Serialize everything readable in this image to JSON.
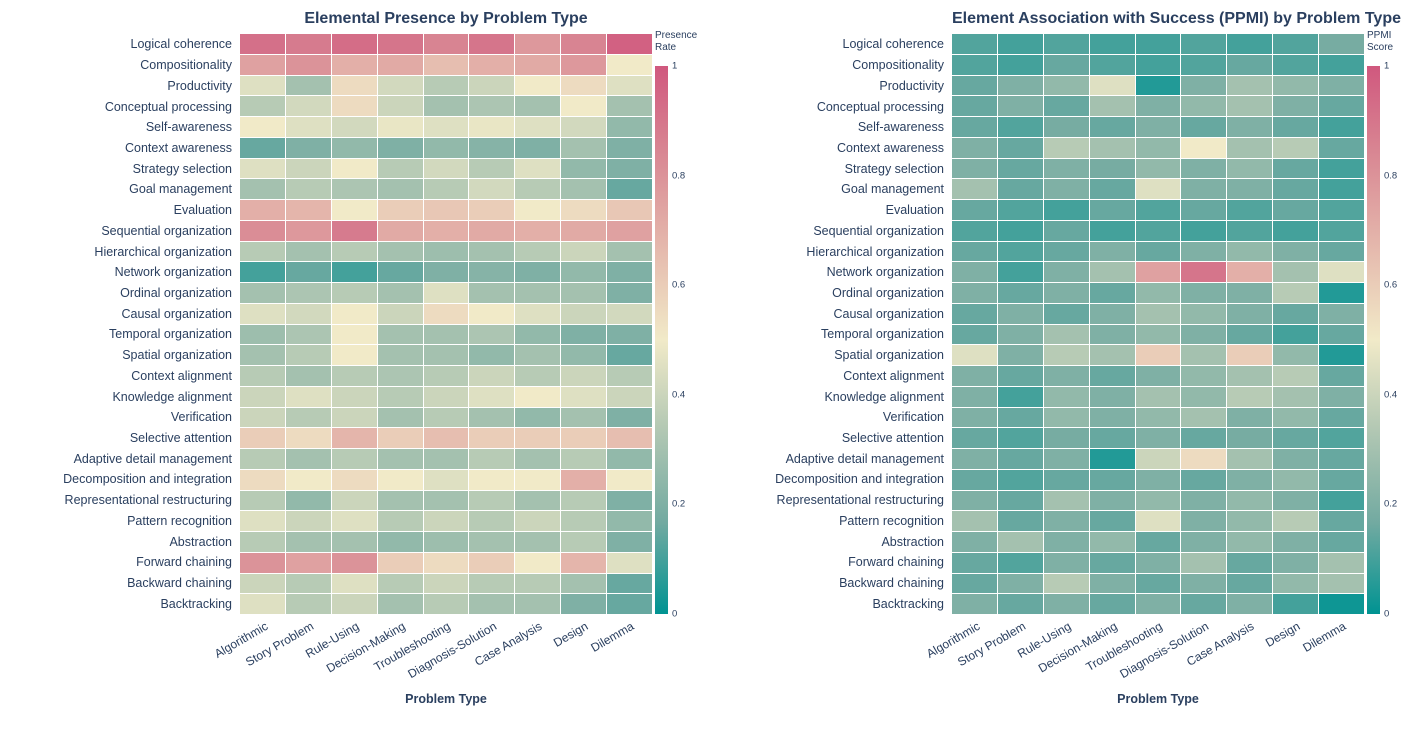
{
  "figure": {
    "text_color": "#2a3f5f",
    "background": "#ffffff",
    "colorscale_name": "tealrose",
    "colorscale": [
      "#009392",
      "#72aaa1",
      "#b1c7b3",
      "#f1eac8",
      "#e5b9ad",
      "#d98994",
      "#d0587e"
    ]
  },
  "chart_data": [
    {
      "type": "heatmap",
      "title": "Elemental Presence by Problem Type",
      "xlabel": "Problem Type",
      "colorbar_title_lines": [
        "Presence",
        "Rate"
      ],
      "zmin": 0,
      "zmax": 1,
      "grid_gaps": true,
      "legend_position": "right-colorbar",
      "colorbar_ticks": [
        {
          "v": 1,
          "label": "1"
        },
        {
          "v": 0.8,
          "label": "0.8"
        },
        {
          "v": 0.6,
          "label": "0.6"
        },
        {
          "v": 0.4,
          "label": "0.4"
        },
        {
          "v": 0.2,
          "label": "0.2"
        },
        {
          "v": 0,
          "label": "0"
        }
      ],
      "categories_x": [
        "Algorithmic",
        "Story Problem",
        "Rule-Using",
        "Decision-Making",
        "Troubleshooting",
        "Diagnosis-Solution",
        "Case Analysis",
        "Design",
        "Dilemma"
      ],
      "categories_y": [
        "Logical coherence",
        "Compositionality",
        "Productivity",
        "Conceptual processing",
        "Self-awareness",
        "Context awareness",
        "Strategy selection",
        "Goal management",
        "Evaluation",
        "Sequential organization",
        "Hierarchical organization",
        "Network organization",
        "Ordinal organization",
        "Causal organization",
        "Temporal organization",
        "Spatial organization",
        "Context alignment",
        "Knowledge alignment",
        "Verification",
        "Selective attention",
        "Adaptive detail management",
        "Decomposition and integration",
        "Representational restructuring",
        "Pattern recognition",
        "Abstraction",
        "Forward chaining",
        "Backward chaining",
        "Backtracking"
      ],
      "values": [
        [
          0.92,
          0.88,
          0.93,
          0.9,
          0.85,
          0.9,
          0.78,
          0.85,
          0.97
        ],
        [
          0.75,
          0.8,
          0.7,
          0.72,
          0.65,
          0.7,
          0.72,
          0.78,
          0.5
        ],
        [
          0.45,
          0.3,
          0.55,
          0.42,
          0.35,
          0.4,
          0.5,
          0.55,
          0.45
        ],
        [
          0.35,
          0.42,
          0.55,
          0.4,
          0.3,
          0.32,
          0.3,
          0.5,
          0.3
        ],
        [
          0.5,
          0.45,
          0.42,
          0.48,
          0.45,
          0.48,
          0.45,
          0.42,
          0.25
        ],
        [
          0.15,
          0.2,
          0.25,
          0.2,
          0.25,
          0.22,
          0.2,
          0.3,
          0.2
        ],
        [
          0.45,
          0.4,
          0.5,
          0.35,
          0.42,
          0.35,
          0.45,
          0.25,
          0.2
        ],
        [
          0.3,
          0.35,
          0.32,
          0.3,
          0.35,
          0.42,
          0.35,
          0.3,
          0.15
        ],
        [
          0.7,
          0.68,
          0.5,
          0.6,
          0.62,
          0.6,
          0.5,
          0.55,
          0.62
        ],
        [
          0.82,
          0.78,
          0.88,
          0.72,
          0.7,
          0.72,
          0.7,
          0.72,
          0.75
        ],
        [
          0.35,
          0.3,
          0.35,
          0.3,
          0.28,
          0.3,
          0.35,
          0.4,
          0.3
        ],
        [
          0.1,
          0.15,
          0.1,
          0.15,
          0.2,
          0.22,
          0.2,
          0.25,
          0.2
        ],
        [
          0.3,
          0.32,
          0.35,
          0.3,
          0.45,
          0.3,
          0.3,
          0.3,
          0.2
        ],
        [
          0.45,
          0.42,
          0.5,
          0.4,
          0.55,
          0.5,
          0.45,
          0.4,
          0.42
        ],
        [
          0.28,
          0.32,
          0.5,
          0.3,
          0.3,
          0.32,
          0.25,
          0.2,
          0.2
        ],
        [
          0.3,
          0.35,
          0.5,
          0.3,
          0.3,
          0.25,
          0.3,
          0.25,
          0.15
        ],
        [
          0.35,
          0.3,
          0.35,
          0.32,
          0.35,
          0.4,
          0.35,
          0.4,
          0.35
        ],
        [
          0.4,
          0.45,
          0.4,
          0.35,
          0.4,
          0.45,
          0.5,
          0.45,
          0.4
        ],
        [
          0.4,
          0.35,
          0.4,
          0.3,
          0.35,
          0.3,
          0.25,
          0.3,
          0.2
        ],
        [
          0.6,
          0.55,
          0.68,
          0.6,
          0.65,
          0.6,
          0.6,
          0.6,
          0.65
        ],
        [
          0.35,
          0.3,
          0.35,
          0.3,
          0.3,
          0.35,
          0.3,
          0.35,
          0.25
        ],
        [
          0.55,
          0.5,
          0.55,
          0.5,
          0.45,
          0.5,
          0.5,
          0.7,
          0.5
        ],
        [
          0.35,
          0.25,
          0.4,
          0.3,
          0.3,
          0.35,
          0.3,
          0.35,
          0.2
        ],
        [
          0.45,
          0.4,
          0.45,
          0.35,
          0.4,
          0.35,
          0.4,
          0.35,
          0.25
        ],
        [
          0.35,
          0.3,
          0.3,
          0.25,
          0.28,
          0.3,
          0.3,
          0.35,
          0.2
        ],
        [
          0.8,
          0.75,
          0.8,
          0.6,
          0.55,
          0.6,
          0.5,
          0.68,
          0.45
        ],
        [
          0.4,
          0.35,
          0.45,
          0.35,
          0.4,
          0.35,
          0.35,
          0.3,
          0.15
        ],
        [
          0.45,
          0.35,
          0.4,
          0.3,
          0.35,
          0.3,
          0.3,
          0.2,
          0.15
        ]
      ]
    },
    {
      "type": "heatmap",
      "title": "Element Association with Success (PPMI) by Problem Type",
      "xlabel": "Problem Type",
      "colorbar_title_lines": [
        "PPMI",
        "Score"
      ],
      "zmin": 0,
      "zmax": 1,
      "grid_gaps": true,
      "legend_position": "right-colorbar",
      "colorbar_ticks": [
        {
          "v": 1,
          "label": "1"
        },
        {
          "v": 0.8,
          "label": "0.8"
        },
        {
          "v": 0.6,
          "label": "0.6"
        },
        {
          "v": 0.4,
          "label": "0.4"
        },
        {
          "v": 0.2,
          "label": "0.2"
        },
        {
          "v": 0,
          "label": "0"
        }
      ],
      "categories_x": [
        "Algorithmic",
        "Story Problem",
        "Rule-Using",
        "Decision-Making",
        "Troubleshooting",
        "Diagnosis-Solution",
        "Case Analysis",
        "Design",
        "Dilemma"
      ],
      "categories_y": [
        "Logical coherence",
        "Compositionality",
        "Productivity",
        "Conceptual processing",
        "Self-awareness",
        "Context awareness",
        "Strategy selection",
        "Goal management",
        "Evaluation",
        "Sequential organization",
        "Hierarchical organization",
        "Network organization",
        "Ordinal organization",
        "Causal organization",
        "Temporal organization",
        "Spatial organization",
        "Context alignment",
        "Knowledge alignment",
        "Verification",
        "Selective attention",
        "Adaptive detail management",
        "Decomposition and integration",
        "Representational restructuring",
        "Pattern recognition",
        "Abstraction",
        "Forward chaining",
        "Backward chaining",
        "Backtracking"
      ],
      "values": [
        [
          0.12,
          0.1,
          0.12,
          0.1,
          0.1,
          0.12,
          0.1,
          0.12,
          0.18
        ],
        [
          0.12,
          0.1,
          0.15,
          0.12,
          0.1,
          0.12,
          0.15,
          0.12,
          0.1
        ],
        [
          0.15,
          0.2,
          0.25,
          0.45,
          0.05,
          0.2,
          0.3,
          0.25,
          0.2
        ],
        [
          0.15,
          0.2,
          0.15,
          0.3,
          0.2,
          0.25,
          0.3,
          0.2,
          0.15
        ],
        [
          0.15,
          0.12,
          0.18,
          0.15,
          0.2,
          0.15,
          0.2,
          0.15,
          0.1
        ],
        [
          0.2,
          0.15,
          0.35,
          0.3,
          0.25,
          0.5,
          0.3,
          0.35,
          0.15
        ],
        [
          0.2,
          0.15,
          0.2,
          0.18,
          0.25,
          0.2,
          0.25,
          0.15,
          0.1
        ],
        [
          0.3,
          0.15,
          0.2,
          0.15,
          0.45,
          0.2,
          0.2,
          0.15,
          0.1
        ],
        [
          0.15,
          0.12,
          0.1,
          0.15,
          0.12,
          0.15,
          0.12,
          0.15,
          0.12
        ],
        [
          0.12,
          0.1,
          0.15,
          0.1,
          0.12,
          0.1,
          0.12,
          0.1,
          0.12
        ],
        [
          0.15,
          0.12,
          0.15,
          0.2,
          0.15,
          0.2,
          0.25,
          0.2,
          0.15
        ],
        [
          0.2,
          0.1,
          0.2,
          0.3,
          0.75,
          0.9,
          0.7,
          0.3,
          0.45
        ],
        [
          0.2,
          0.15,
          0.2,
          0.15,
          0.25,
          0.2,
          0.2,
          0.35,
          0.05
        ],
        [
          0.15,
          0.2,
          0.15,
          0.2,
          0.3,
          0.25,
          0.2,
          0.15,
          0.2
        ],
        [
          0.15,
          0.2,
          0.3,
          0.2,
          0.25,
          0.2,
          0.15,
          0.1,
          0.15
        ],
        [
          0.45,
          0.2,
          0.35,
          0.3,
          0.6,
          0.3,
          0.6,
          0.25,
          0.05
        ],
        [
          0.2,
          0.15,
          0.2,
          0.15,
          0.2,
          0.25,
          0.3,
          0.35,
          0.15
        ],
        [
          0.2,
          0.1,
          0.25,
          0.2,
          0.3,
          0.25,
          0.35,
          0.3,
          0.2
        ],
        [
          0.2,
          0.15,
          0.25,
          0.2,
          0.25,
          0.3,
          0.2,
          0.25,
          0.15
        ],
        [
          0.15,
          0.12,
          0.18,
          0.15,
          0.2,
          0.15,
          0.18,
          0.15,
          0.12
        ],
        [
          0.2,
          0.15,
          0.2,
          0.05,
          0.4,
          0.55,
          0.3,
          0.2,
          0.15
        ],
        [
          0.15,
          0.12,
          0.15,
          0.15,
          0.2,
          0.15,
          0.2,
          0.25,
          0.15
        ],
        [
          0.2,
          0.15,
          0.3,
          0.2,
          0.25,
          0.2,
          0.25,
          0.2,
          0.1
        ],
        [
          0.3,
          0.15,
          0.2,
          0.15,
          0.45,
          0.2,
          0.25,
          0.35,
          0.15
        ],
        [
          0.2,
          0.3,
          0.2,
          0.25,
          0.15,
          0.2,
          0.25,
          0.2,
          0.15
        ],
        [
          0.15,
          0.12,
          0.2,
          0.15,
          0.2,
          0.3,
          0.15,
          0.2,
          0.3
        ],
        [
          0.15,
          0.2,
          0.35,
          0.2,
          0.15,
          0.2,
          0.15,
          0.25,
          0.3
        ],
        [
          0.2,
          0.15,
          0.2,
          0.15,
          0.2,
          0.15,
          0.2,
          0.1,
          0.02
        ]
      ]
    }
  ]
}
